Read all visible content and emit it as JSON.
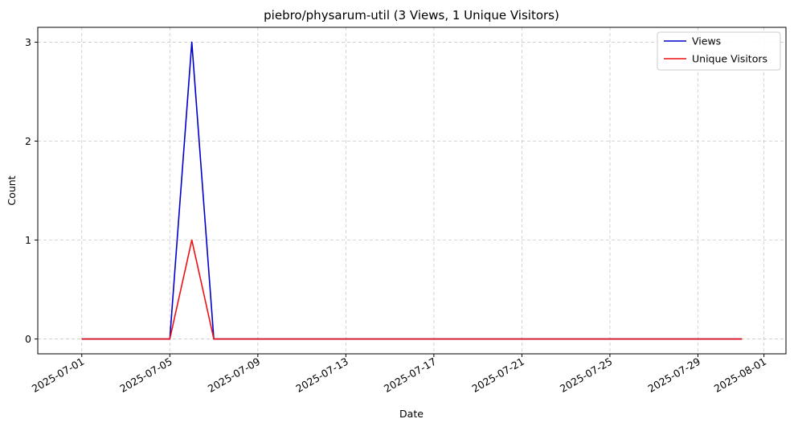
{
  "chart_data": {
    "type": "line",
    "title": "piebro/physarum-util (3 Views, 1 Unique Visitors)",
    "xlabel": "Date",
    "ylabel": "Count",
    "x": [
      "2025-07-01",
      "2025-07-02",
      "2025-07-03",
      "2025-07-04",
      "2025-07-05",
      "2025-07-06",
      "2025-07-07",
      "2025-07-08",
      "2025-07-09",
      "2025-07-10",
      "2025-07-11",
      "2025-07-12",
      "2025-07-13",
      "2025-07-14",
      "2025-07-15",
      "2025-07-16",
      "2025-07-17",
      "2025-07-18",
      "2025-07-19",
      "2025-07-20",
      "2025-07-21",
      "2025-07-22",
      "2025-07-23",
      "2025-07-24",
      "2025-07-25",
      "2025-07-26",
      "2025-07-27",
      "2025-07-28",
      "2025-07-29",
      "2025-07-30",
      "2025-07-31"
    ],
    "series": [
      {
        "name": "Views",
        "color": "#0000cc",
        "values": [
          0,
          0,
          0,
          0,
          0,
          3,
          0,
          0,
          0,
          0,
          0,
          0,
          0,
          0,
          0,
          0,
          0,
          0,
          0,
          0,
          0,
          0,
          0,
          0,
          0,
          0,
          0,
          0,
          0,
          0,
          0
        ]
      },
      {
        "name": "Unique Visitors",
        "color": "#ee1111",
        "values": [
          0,
          0,
          0,
          0,
          0,
          1,
          0,
          0,
          0,
          0,
          0,
          0,
          0,
          0,
          0,
          0,
          0,
          0,
          0,
          0,
          0,
          0,
          0,
          0,
          0,
          0,
          0,
          0,
          0,
          0,
          0
        ]
      }
    ],
    "x_ticks": [
      "2025-07-01",
      "2025-07-05",
      "2025-07-09",
      "2025-07-13",
      "2025-07-17",
      "2025-07-21",
      "2025-07-25",
      "2025-07-29",
      "2025-08-01"
    ],
    "y_ticks": [
      0,
      1,
      2,
      3
    ],
    "xlim": [
      "2025-06-29",
      "2025-08-02"
    ],
    "ylim": [
      -0.15,
      3.15
    ],
    "grid": true,
    "legend_position": "top-right"
  }
}
